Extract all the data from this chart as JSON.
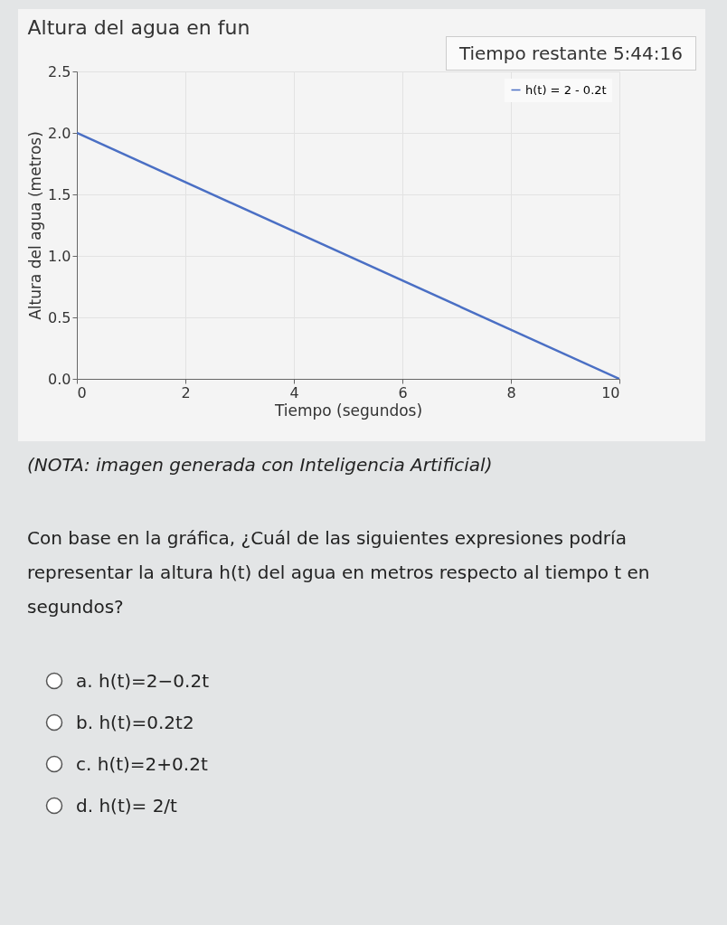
{
  "chart_data": {
    "type": "line",
    "title": "Altura del agua en fun",
    "xlabel": "Tiempo (segundos)",
    "ylabel": "Altura del agua (metros)",
    "x": [
      0,
      10
    ],
    "series": [
      {
        "name": "h(t) = 2 - 0.2t",
        "color": "#4a6fc4",
        "values": [
          2,
          0
        ]
      }
    ],
    "xlim": [
      0,
      10
    ],
    "ylim": [
      0,
      2.5
    ],
    "xticks": [
      0,
      2,
      4,
      6,
      8,
      10
    ],
    "yticks": [
      {
        "value": 0,
        "label": "0.0"
      },
      {
        "value": 0.5,
        "label": "0.5"
      },
      {
        "value": 1,
        "label": "1.0"
      },
      {
        "value": 1.5,
        "label": "1.5"
      },
      {
        "value": 2,
        "label": "2.0"
      },
      {
        "value": 2.5,
        "label": "2.5"
      }
    ],
    "grid": true,
    "legend": "top right",
    "marker": "none",
    "line_style": "solid",
    "annotations": [
      "Tiempo restante 5:44:16",
      "(NOTA: imagen generada con Inteligencia Artificial)",
      "Con base en la gráfica, ¿Cuál de las siguientes expresiones podría representar la altura h(t) del agua en metros respecto al tiempo t en segundos?",
      "a.  h(t)=2−0.2t",
      "b.  h(t)=0.2t2",
      "c.  h(t)=2+0.2t",
      "d.  h(t)= 2/t"
    ]
  }
}
